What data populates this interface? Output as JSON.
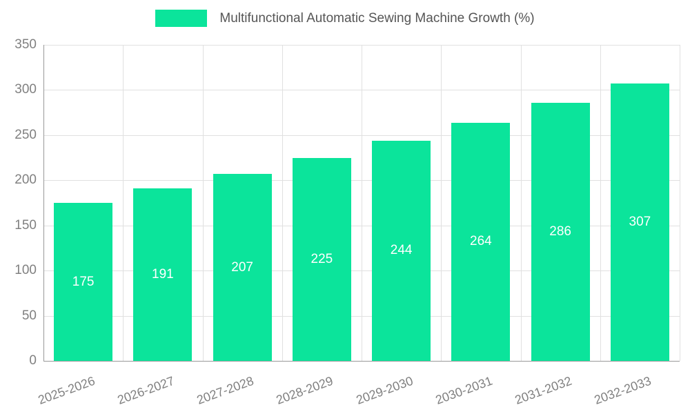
{
  "chart_data": {
    "type": "bar",
    "title": "Multifunctional Automatic Sewing Machine Growth (%)",
    "categories": [
      "2025-2026",
      "2026-2027",
      "2027-2028",
      "2028-2029",
      "2029-2030",
      "2030-2031",
      "2031-2032",
      "2032-2033"
    ],
    "values": [
      175,
      191,
      207,
      225,
      244,
      264,
      286,
      307
    ],
    "xlabel": "",
    "ylabel": "",
    "ylim": [
      0,
      350
    ],
    "yticks": [
      0,
      50,
      100,
      150,
      200,
      250,
      300,
      350
    ],
    "grid": "on",
    "legend_position": "top-center",
    "colors": {
      "bar": "#0be49b",
      "grid": "#e0e0e0",
      "axis": "#999999",
      "tick_label": "#808080",
      "title": "#555555",
      "value_label": "#ffffff"
    }
  }
}
